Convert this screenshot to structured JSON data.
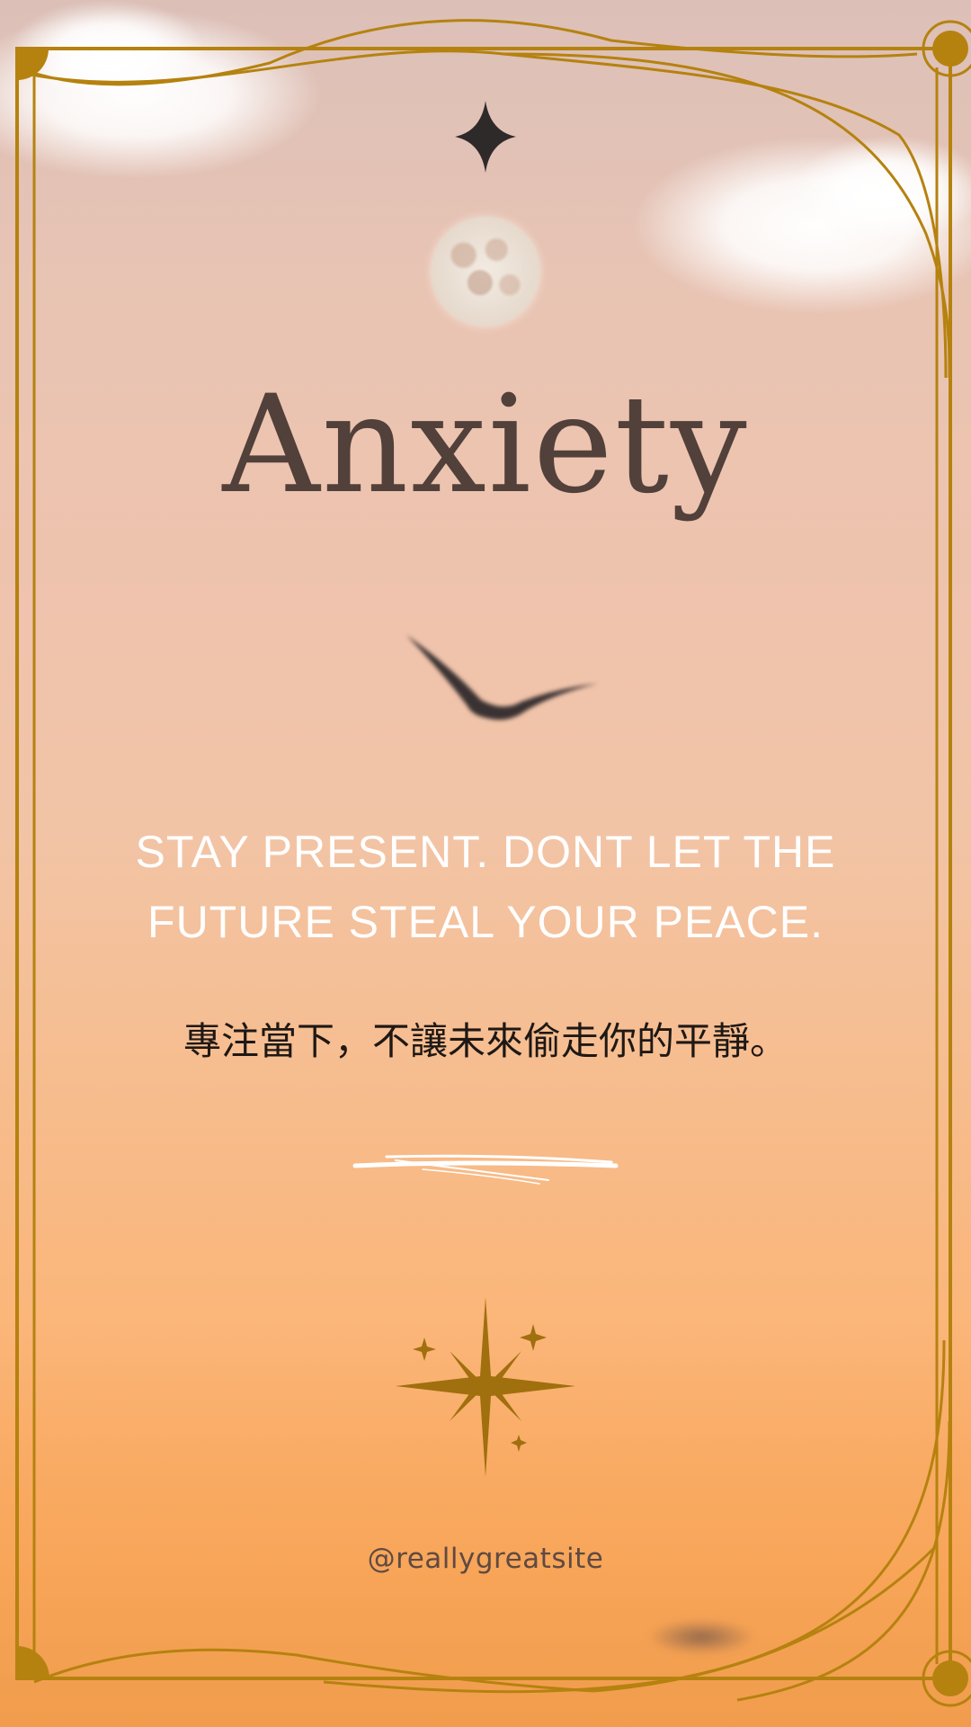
{
  "poster": {
    "title": "Anxiety",
    "quote_en": "STAY PRESENT. DONT LET THE FUTURE STEAL YOUR PEACE.",
    "quote_zh": "專注當下，不讓未來偷走你的平靜。",
    "handle": "@reallygreatsite"
  },
  "colors": {
    "frame_gold": "#b5820f",
    "title_brown": "#52403a",
    "star_dark": "#2f2a2a",
    "sky_top": "#dcc0b8",
    "sky_bottom": "#f4a455"
  },
  "icons": [
    "four-point-star-icon",
    "moon-icon",
    "bird-icon",
    "brush-stroke-divider",
    "sparkle-cluster-icon"
  ]
}
